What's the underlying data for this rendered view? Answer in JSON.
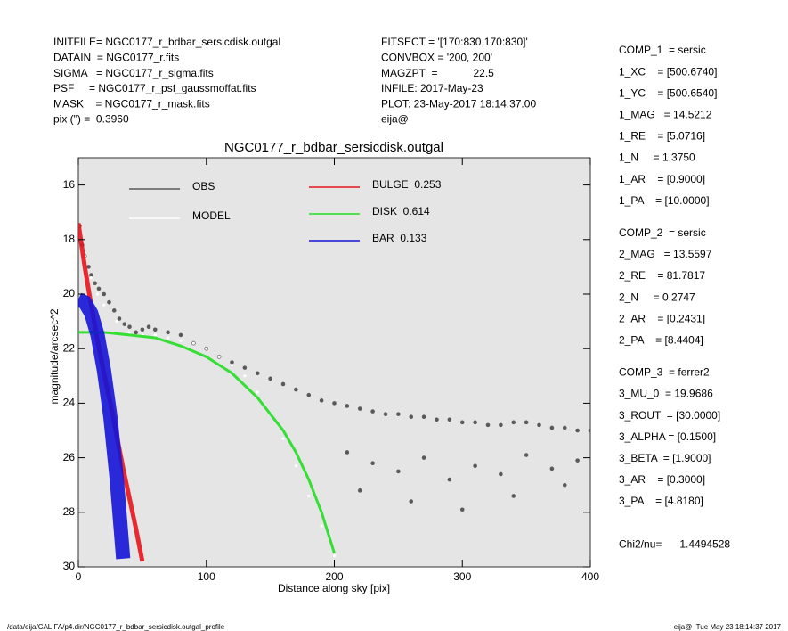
{
  "header": {
    "left": [
      "INITFILE= NGC0177_r_bdbar_sersicdisk.outgal",
      "DATAIN  = NGC0177_r.fits",
      "SIGMA   = NGC0177_r_sigma.fits",
      "PSF     = NGC0177_r_psf_gaussmoffat.fits",
      "MASK    = NGC0177_r_mask.fits",
      "pix (\") =  0.3960"
    ],
    "middle": [
      "FITSECT = '[170:830,170:830]'",
      "CONVBOX = '200, 200'",
      "MAGZPT  =            22.5",
      "INFILE: 2017-May-23",
      "PLOT: 23-May-2017 18:14:37.00",
      "eija@"
    ]
  },
  "params": [
    [
      "COMP_1  = sersic",
      "1_XC    = [500.6740]",
      "1_YC    = [500.6540]",
      "1_MAG   = 14.5212",
      "1_RE    = [5.0716]",
      "1_N     = 1.3750",
      "1_AR    = [0.9000]",
      "1_PA    = [10.0000]"
    ],
    [
      "COMP_2  = sersic",
      "2_MAG   = 13.5597",
      "2_RE    = 81.7817",
      "2_N     = 0.2747",
      "2_AR    = [0.2431]",
      "2_PA    = [8.4404]"
    ],
    [
      "COMP_3  = ferrer2",
      "3_MU_0  = 19.9686",
      "3_ROUT  = [30.0000]",
      "3_ALPHA = [0.1500]",
      "3_BETA  = [1.9000]",
      "3_AR    = [0.3000]",
      "3_PA    = [4.8180]"
    ],
    [
      "Chi2/nu=      1.4494528"
    ]
  ],
  "footer": {
    "left": "/data/eija/CALIFA/p4.dir/NGC0177_r_bdbar_sersicdisk.outgal_profile",
    "right": "eija@  Tue May 23 18:14:37 2017"
  },
  "chart_data": {
    "type": "scatter",
    "title": "NGC0177_r_bdbar_sersicdisk.outgal",
    "xlabel": "Distance along sky [pix]",
    "ylabel": "magnitude/arcsec^2",
    "xlim": [
      0,
      400
    ],
    "xticks": [
      0,
      100,
      200,
      300,
      400
    ],
    "ylim": [
      15,
      30
    ],
    "y_inverted": true,
    "yticks": [
      16,
      18,
      20,
      22,
      24,
      26,
      28,
      30
    ],
    "series": [
      {
        "name": "OBS",
        "color": "#5a5a5a",
        "marker": "dots",
        "x": [
          1,
          3,
          5,
          8,
          10,
          13,
          16,
          20,
          24,
          28,
          32,
          36,
          40,
          45,
          50,
          55,
          60,
          70,
          80,
          90,
          100,
          110,
          120,
          130,
          140,
          150,
          160,
          170,
          180,
          190,
          200,
          210,
          220,
          230,
          240,
          250,
          260,
          270,
          280,
          290,
          300,
          310,
          320,
          330,
          340,
          350,
          360,
          370,
          380,
          390,
          400,
          210,
          230,
          250,
          270,
          290,
          310,
          330,
          350,
          370,
          390,
          220,
          260,
          300,
          340,
          380
        ],
        "values": [
          17.5,
          18.2,
          18.6,
          19.0,
          19.3,
          19.6,
          19.8,
          20.0,
          20.3,
          20.6,
          20.9,
          21.1,
          21.2,
          21.4,
          21.3,
          21.2,
          21.3,
          21.4,
          21.5,
          21.8,
          22.0,
          22.3,
          22.5,
          22.7,
          22.9,
          23.1,
          23.3,
          23.5,
          23.7,
          23.9,
          24.0,
          24.1,
          24.2,
          24.3,
          24.4,
          24.4,
          24.5,
          24.5,
          24.6,
          24.6,
          24.7,
          24.7,
          24.8,
          24.8,
          24.7,
          24.7,
          24.8,
          24.9,
          24.9,
          25.0,
          25.0,
          25.8,
          26.2,
          26.5,
          26.0,
          26.8,
          26.3,
          26.6,
          25.9,
          26.4,
          26.1,
          27.2,
          27.6,
          27.9,
          27.4,
          27.0
        ]
      },
      {
        "name": "MODEL",
        "color": "#ffffff",
        "marker": "dots",
        "x": [
          0,
          5,
          10,
          15,
          20,
          30,
          40,
          50,
          60,
          70,
          80,
          90,
          100,
          110,
          120,
          130,
          140,
          150,
          160,
          170,
          180,
          190,
          200
        ],
        "values": [
          17.5,
          18.6,
          19.4,
          20.0,
          20.4,
          21.0,
          21.4,
          21.5,
          21.5,
          21.6,
          21.7,
          21.8,
          22.0,
          22.3,
          22.6,
          23.0,
          23.6,
          24.4,
          25.3,
          26.3,
          27.4,
          28.5,
          29.6
        ]
      },
      {
        "name": "BULGE  0.253",
        "color": "#e8141c",
        "marker": "line",
        "x": [
          0,
          5,
          10,
          15,
          20,
          25,
          30,
          35,
          40,
          45,
          50
        ],
        "values": [
          17.4,
          19.0,
          20.4,
          21.7,
          22.9,
          24.0,
          25.2,
          26.4,
          27.5,
          28.6,
          29.8
        ]
      },
      {
        "name": "DISK  0.614",
        "color": "#22dd22",
        "marker": "line",
        "x": [
          0,
          20,
          40,
          60,
          80,
          100,
          120,
          140,
          160,
          170,
          180,
          190,
          200
        ],
        "values": [
          21.4,
          21.4,
          21.5,
          21.6,
          21.9,
          22.3,
          22.9,
          23.8,
          25.0,
          25.8,
          26.8,
          28.0,
          29.5
        ]
      },
      {
        "name": "BAR  0.133",
        "color": "#1414d8",
        "marker": "line",
        "x": [
          0,
          5,
          10,
          15,
          20,
          25,
          30,
          35
        ],
        "values": [
          20.2,
          20.3,
          20.7,
          21.5,
          22.8,
          24.5,
          26.8,
          29.7
        ]
      }
    ]
  }
}
